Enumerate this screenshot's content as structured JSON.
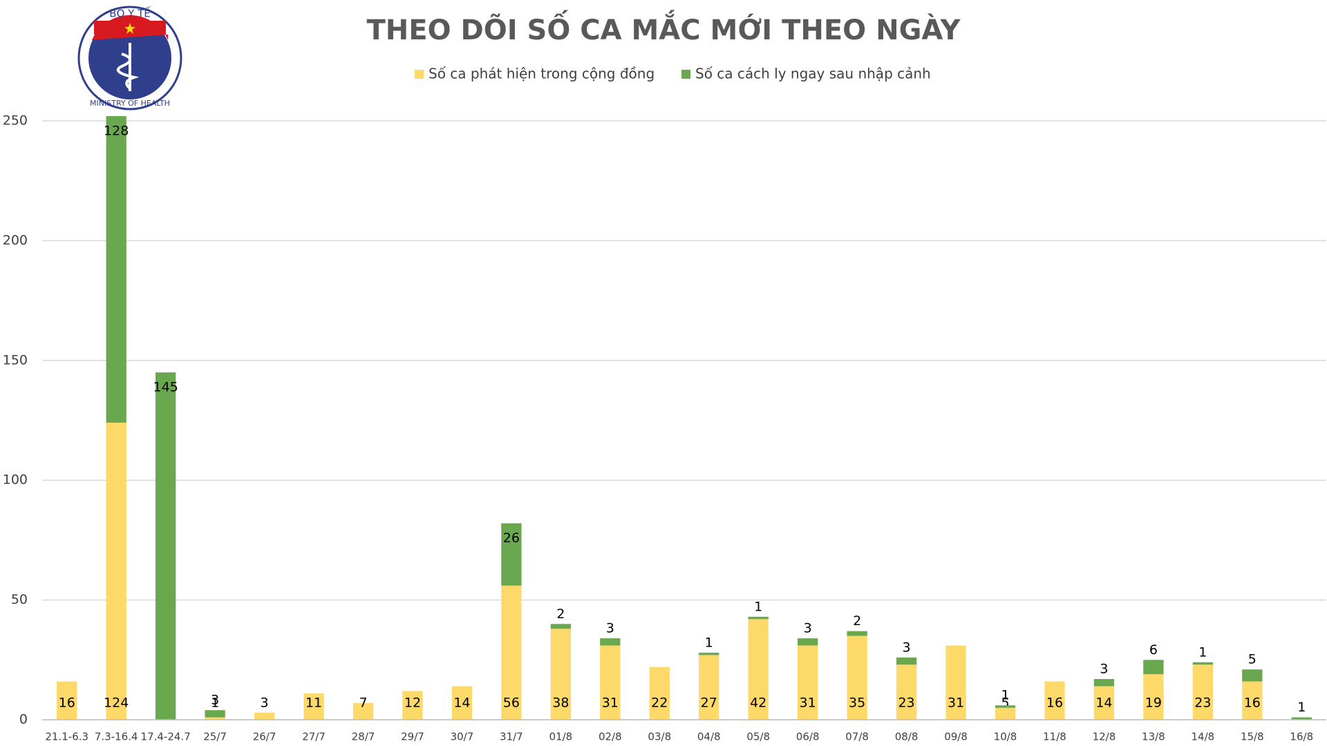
{
  "logo": {
    "top": "BỘ Y TẾ",
    "bottom": "MINISTRY OF HEALTH"
  },
  "chart_data": {
    "type": "stacked-bar",
    "title": "THEO DÕI SỐ CA MẮC MỚI THEO NGÀY",
    "categories": [
      "21.1-6.3",
      "7.3-16.4",
      "17.4-24.7",
      "25/7",
      "26/7",
      "27/7",
      "28/7",
      "29/7",
      "30/7",
      "31/7",
      "01/8",
      "02/8",
      "03/8",
      "04/8",
      "05/8",
      "06/8",
      "07/8",
      "08/8",
      "09/8",
      "10/8",
      "11/8",
      "12/8",
      "13/8",
      "14/8",
      "15/8",
      "16/8"
    ],
    "series": [
      {
        "name": "Số ca phát hiện trong cộng đồng",
        "color": "#fdd96a",
        "values": [
          16,
          124,
          null,
          1,
          3,
          11,
          7,
          12,
          14,
          56,
          38,
          31,
          22,
          27,
          42,
          31,
          35,
          23,
          31,
          5,
          16,
          14,
          19,
          23,
          16,
          null
        ]
      },
      {
        "name": "Số ca cách ly ngay sau nhập cảnh",
        "color": "#6aa84f",
        "values": [
          null,
          128,
          145,
          3,
          null,
          null,
          null,
          null,
          null,
          26,
          2,
          3,
          null,
          1,
          1,
          3,
          2,
          3,
          null,
          1,
          null,
          3,
          6,
          1,
          5,
          1
        ]
      }
    ],
    "ylim": [
      0,
      250
    ],
    "yticks": [
      0,
      50,
      100,
      150,
      200,
      250
    ],
    "grid": true,
    "legend": "top"
  }
}
